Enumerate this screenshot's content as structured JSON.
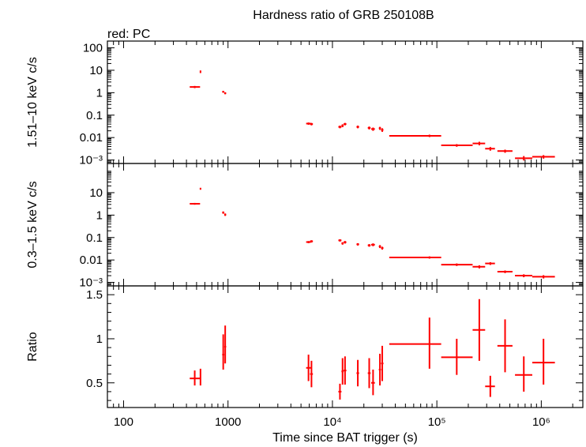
{
  "chart_data": {
    "type": "scatter",
    "title": "Hardness ratio of GRB 250108B",
    "subtitle": "red: PC",
    "xlabel": "Time since BAT trigger (s)",
    "xscale": "log",
    "xlim": [
      70,
      2500000
    ],
    "x_ticks": [
      {
        "value": 100,
        "label": "100"
      },
      {
        "value": 1000,
        "label": "1000"
      },
      {
        "value": 10000,
        "label": "10⁴"
      },
      {
        "value": 100000,
        "label": "10⁵"
      },
      {
        "value": 1000000,
        "label": "10⁶"
      }
    ],
    "series_color": "#ff0000",
    "panels": [
      {
        "name": "hard",
        "ylabel": "1.51–10 keV c/s",
        "yscale": "log",
        "ylim": [
          0.0007,
          200
        ],
        "y_ticks": [
          {
            "value": 100,
            "label": "100"
          },
          {
            "value": 10,
            "label": "10"
          },
          {
            "value": 1,
            "label": "1"
          },
          {
            "value": 0.1,
            "label": "0.1"
          },
          {
            "value": 0.01,
            "label": "0.01"
          },
          {
            "value": 0.001,
            "label": "10⁻³"
          }
        ],
        "points": [
          {
            "x": 480,
            "xlo": 430,
            "xhi": 540,
            "y": 1.8,
            "ylo": 1.6,
            "yhi": 2.0
          },
          {
            "x": 545,
            "xlo": 540,
            "xhi": 550,
            "y": 8.5,
            "ylo": 7.5,
            "yhi": 9.8
          },
          {
            "x": 900,
            "xlo": 880,
            "xhi": 920,
            "y": 1.1,
            "ylo": 1.0,
            "yhi": 1.2
          },
          {
            "x": 940,
            "xlo": 920,
            "xhi": 960,
            "y": 0.95,
            "ylo": 0.85,
            "yhi": 1.05
          },
          {
            "x": 5900,
            "xlo": 5600,
            "xhi": 6200,
            "y": 0.042,
            "ylo": 0.037,
            "yhi": 0.047
          },
          {
            "x": 6300,
            "xlo": 6100,
            "xhi": 6500,
            "y": 0.04,
            "ylo": 0.035,
            "yhi": 0.045
          },
          {
            "x": 11800,
            "xlo": 11400,
            "xhi": 12200,
            "y": 0.03,
            "ylo": 0.026,
            "yhi": 0.034
          },
          {
            "x": 12500,
            "xlo": 12200,
            "xhi": 12800,
            "y": 0.034,
            "ylo": 0.029,
            "yhi": 0.039
          },
          {
            "x": 13200,
            "xlo": 12800,
            "xhi": 13600,
            "y": 0.04,
            "ylo": 0.035,
            "yhi": 0.045
          },
          {
            "x": 17500,
            "xlo": 17000,
            "xhi": 18000,
            "y": 0.03,
            "ylo": 0.026,
            "yhi": 0.034
          },
          {
            "x": 22500,
            "xlo": 21800,
            "xhi": 23200,
            "y": 0.027,
            "ylo": 0.023,
            "yhi": 0.031
          },
          {
            "x": 24500,
            "xlo": 23500,
            "xhi": 25500,
            "y": 0.024,
            "ylo": 0.02,
            "yhi": 0.028
          },
          {
            "x": 28500,
            "xlo": 27800,
            "xhi": 29200,
            "y": 0.026,
            "ylo": 0.022,
            "yhi": 0.03
          },
          {
            "x": 30000,
            "xlo": 29200,
            "xhi": 30800,
            "y": 0.022,
            "ylo": 0.018,
            "yhi": 0.026
          },
          {
            "x": 85000,
            "xlo": 35000,
            "xhi": 110000,
            "y": 0.012,
            "ylo": 0.0105,
            "yhi": 0.0135
          },
          {
            "x": 155000,
            "xlo": 110000,
            "xhi": 220000,
            "y": 0.0045,
            "ylo": 0.0039,
            "yhi": 0.0051
          },
          {
            "x": 255000,
            "xlo": 220000,
            "xhi": 290000,
            "y": 0.0055,
            "ylo": 0.0045,
            "yhi": 0.0065
          },
          {
            "x": 325000,
            "xlo": 290000,
            "xhi": 360000,
            "y": 0.0032,
            "ylo": 0.0026,
            "yhi": 0.0038
          },
          {
            "x": 450000,
            "xlo": 380000,
            "xhi": 530000,
            "y": 0.0025,
            "ylo": 0.0021,
            "yhi": 0.0029
          },
          {
            "x": 680000,
            "xlo": 560000,
            "xhi": 820000,
            "y": 0.0012,
            "ylo": 0.00095,
            "yhi": 0.0015
          },
          {
            "x": 1050000,
            "xlo": 820000,
            "xhi": 1350000,
            "y": 0.0014,
            "ylo": 0.00115,
            "yhi": 0.00165
          }
        ]
      },
      {
        "name": "soft",
        "ylabel": "0.3–1.5 keV c/s",
        "yscale": "log",
        "ylim": [
          0.0007,
          200
        ],
        "y_ticks": [
          {
            "value": 10,
            "label": "10"
          },
          {
            "value": 1,
            "label": "1"
          },
          {
            "value": 0.1,
            "label": "0.1"
          },
          {
            "value": 0.01,
            "label": "0.01"
          },
          {
            "value": 0.001,
            "label": "10⁻³"
          }
        ],
        "points": [
          {
            "x": 480,
            "xlo": 430,
            "xhi": 540,
            "y": 3.2,
            "ylo": 2.9,
            "yhi": 3.5
          },
          {
            "x": 545,
            "xlo": 540,
            "xhi": 550,
            "y": 15,
            "ylo": 13.5,
            "yhi": 16.5
          },
          {
            "x": 900,
            "xlo": 880,
            "xhi": 920,
            "y": 1.3,
            "ylo": 1.15,
            "yhi": 1.45
          },
          {
            "x": 940,
            "xlo": 920,
            "xhi": 960,
            "y": 1.05,
            "ylo": 0.92,
            "yhi": 1.18
          },
          {
            "x": 5900,
            "xlo": 5600,
            "xhi": 6200,
            "y": 0.063,
            "ylo": 0.056,
            "yhi": 0.07
          },
          {
            "x": 6300,
            "xlo": 6100,
            "xhi": 6500,
            "y": 0.068,
            "ylo": 0.06,
            "yhi": 0.076
          },
          {
            "x": 11800,
            "xlo": 11400,
            "xhi": 12200,
            "y": 0.075,
            "ylo": 0.066,
            "yhi": 0.084
          },
          {
            "x": 12500,
            "xlo": 12200,
            "xhi": 12800,
            "y": 0.055,
            "ylo": 0.048,
            "yhi": 0.062
          },
          {
            "x": 13200,
            "xlo": 12800,
            "xhi": 13600,
            "y": 0.062,
            "ylo": 0.054,
            "yhi": 0.07
          },
          {
            "x": 17500,
            "xlo": 17000,
            "xhi": 18000,
            "y": 0.05,
            "ylo": 0.044,
            "yhi": 0.056
          },
          {
            "x": 22500,
            "xlo": 21800,
            "xhi": 23200,
            "y": 0.045,
            "ylo": 0.039,
            "yhi": 0.051
          },
          {
            "x": 24500,
            "xlo": 23500,
            "xhi": 25500,
            "y": 0.048,
            "ylo": 0.041,
            "yhi": 0.055
          },
          {
            "x": 28500,
            "xlo": 27800,
            "xhi": 29200,
            "y": 0.04,
            "ylo": 0.034,
            "yhi": 0.046
          },
          {
            "x": 30000,
            "xlo": 29200,
            "xhi": 30800,
            "y": 0.034,
            "ylo": 0.029,
            "yhi": 0.039
          },
          {
            "x": 85000,
            "xlo": 35000,
            "xhi": 110000,
            "y": 0.013,
            "ylo": 0.0115,
            "yhi": 0.0145
          },
          {
            "x": 155000,
            "xlo": 110000,
            "xhi": 220000,
            "y": 0.0062,
            "ylo": 0.0054,
            "yhi": 0.007
          },
          {
            "x": 255000,
            "xlo": 220000,
            "xhi": 290000,
            "y": 0.005,
            "ylo": 0.0042,
            "yhi": 0.0058
          },
          {
            "x": 325000,
            "xlo": 290000,
            "xhi": 360000,
            "y": 0.007,
            "ylo": 0.006,
            "yhi": 0.008
          },
          {
            "x": 450000,
            "xlo": 380000,
            "xhi": 530000,
            "y": 0.003,
            "ylo": 0.0026,
            "yhi": 0.0034
          },
          {
            "x": 680000,
            "xlo": 560000,
            "xhi": 820000,
            "y": 0.002,
            "ylo": 0.0017,
            "yhi": 0.0023
          },
          {
            "x": 1050000,
            "xlo": 820000,
            "xhi": 1350000,
            "y": 0.0018,
            "ylo": 0.0015,
            "yhi": 0.0021
          }
        ]
      },
      {
        "name": "ratio",
        "ylabel": "Ratio",
        "yscale": "linear",
        "ylim": [
          0.22,
          1.6
        ],
        "y_ticks": [
          {
            "value": 0.5,
            "label": "0.5"
          },
          {
            "value": 1,
            "label": "1"
          },
          {
            "value": 1.5,
            "label": "1.5"
          }
        ],
        "points": [
          {
            "x": 480,
            "xlo": 430,
            "xhi": 540,
            "y": 0.55,
            "ylo": 0.47,
            "yhi": 0.64
          },
          {
            "x": 545,
            "xlo": 540,
            "xhi": 550,
            "y": 0.56,
            "ylo": 0.47,
            "yhi": 0.66
          },
          {
            "x": 900,
            "xlo": 880,
            "xhi": 920,
            "y": 0.82,
            "ylo": 0.65,
            "yhi": 1.05
          },
          {
            "x": 940,
            "xlo": 920,
            "xhi": 960,
            "y": 0.91,
            "ylo": 0.72,
            "yhi": 1.15
          },
          {
            "x": 5900,
            "xlo": 5600,
            "xhi": 6200,
            "y": 0.67,
            "ylo": 0.52,
            "yhi": 0.82
          },
          {
            "x": 6300,
            "xlo": 6100,
            "xhi": 6500,
            "y": 0.6,
            "ylo": 0.45,
            "yhi": 0.75
          },
          {
            "x": 11800,
            "xlo": 11400,
            "xhi": 12200,
            "y": 0.4,
            "ylo": 0.31,
            "yhi": 0.49
          },
          {
            "x": 12500,
            "xlo": 12200,
            "xhi": 12800,
            "y": 0.63,
            "ylo": 0.48,
            "yhi": 0.78
          },
          {
            "x": 13200,
            "xlo": 12800,
            "xhi": 13600,
            "y": 0.64,
            "ylo": 0.48,
            "yhi": 0.8
          },
          {
            "x": 17500,
            "xlo": 17000,
            "xhi": 18000,
            "y": 0.61,
            "ylo": 0.46,
            "yhi": 0.76
          },
          {
            "x": 22500,
            "xlo": 21800,
            "xhi": 23200,
            "y": 0.61,
            "ylo": 0.44,
            "yhi": 0.78
          },
          {
            "x": 24500,
            "xlo": 23500,
            "xhi": 25500,
            "y": 0.5,
            "ylo": 0.36,
            "yhi": 0.65
          },
          {
            "x": 28500,
            "xlo": 27800,
            "xhi": 29200,
            "y": 0.65,
            "ylo": 0.47,
            "yhi": 0.83
          },
          {
            "x": 30000,
            "xlo": 29200,
            "xhi": 30800,
            "y": 0.72,
            "ylo": 0.52,
            "yhi": 0.92
          },
          {
            "x": 85000,
            "xlo": 35000,
            "xhi": 110000,
            "y": 0.94,
            "ylo": 0.66,
            "yhi": 1.24
          },
          {
            "x": 155000,
            "xlo": 110000,
            "xhi": 220000,
            "y": 0.79,
            "ylo": 0.59,
            "yhi": 1.0
          },
          {
            "x": 255000,
            "xlo": 220000,
            "xhi": 290000,
            "y": 1.1,
            "ylo": 0.75,
            "yhi": 1.45
          },
          {
            "x": 325000,
            "xlo": 290000,
            "xhi": 360000,
            "y": 0.46,
            "ylo": 0.34,
            "yhi": 0.58
          },
          {
            "x": 450000,
            "xlo": 380000,
            "xhi": 530000,
            "y": 0.92,
            "ylo": 0.62,
            "yhi": 1.22
          },
          {
            "x": 680000,
            "xlo": 560000,
            "xhi": 820000,
            "y": 0.59,
            "ylo": 0.4,
            "yhi": 0.8
          },
          {
            "x": 1050000,
            "xlo": 820000,
            "xhi": 1350000,
            "y": 0.73,
            "ylo": 0.48,
            "yhi": 1.0
          }
        ]
      }
    ]
  }
}
